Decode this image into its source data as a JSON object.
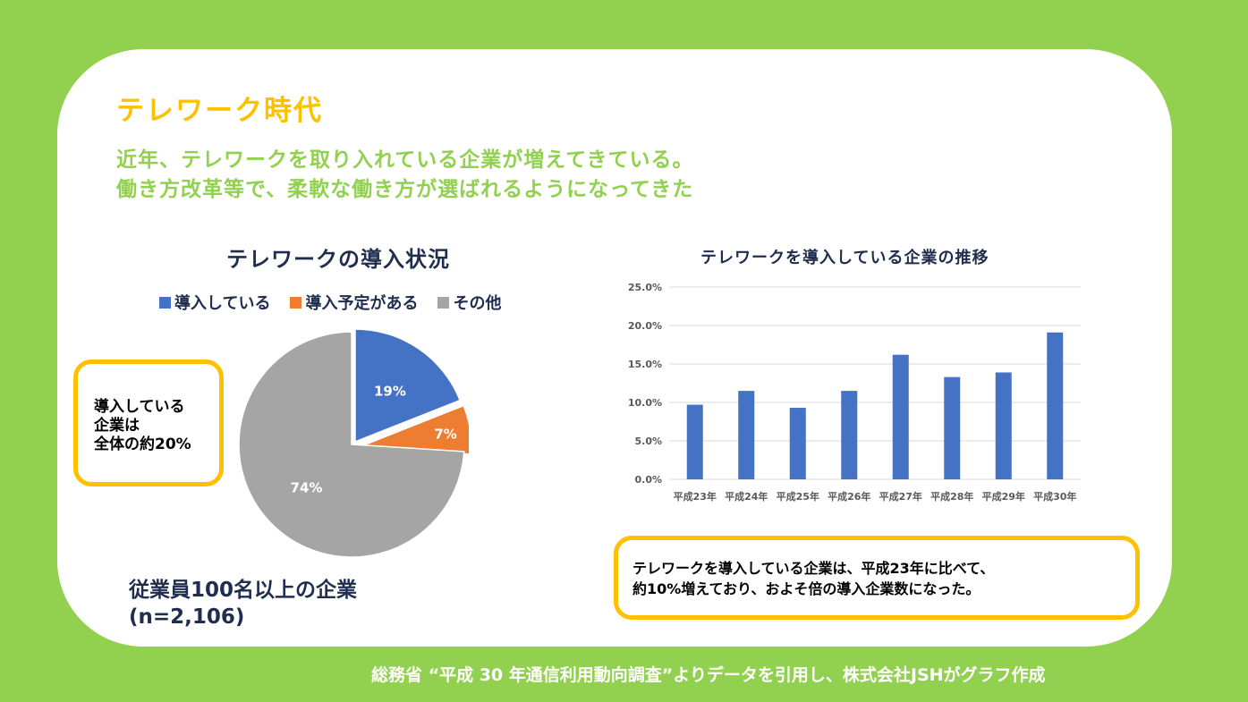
{
  "slide": {
    "title": "テレワーク時代",
    "subtitle_line1": "近年、テレワークを取り入れている企業が増えてきている。",
    "subtitle_line2": "働き方改革等で、柔軟な働き方が選ばれるようになってきた",
    "source": "総務省 “平成 30 年通信利用動向調査”よりデータを引用し、株式会社JSHがグラフ作成"
  },
  "callout_left": {
    "line1": "導入している",
    "line2": "企業は",
    "line3": "全体の約20%"
  },
  "callout_right": {
    "line1": "テレワークを導入している企業は、平成23年に比べて、",
    "line2": "約10%増えており、およそ倍の導入企業数になった。"
  },
  "note": {
    "line1": "従業員100名以上の企業",
    "line2": "(n=2,106)"
  },
  "colors": {
    "background": "#92d050",
    "accent": "#ffc000",
    "blue": "#4472c4",
    "orange": "#ed7d31",
    "gray": "#a5a5a5",
    "navy": "#1f2d4e"
  },
  "chart_data": [
    {
      "type": "pie",
      "title": "テレワークの導入状況",
      "categories": [
        "導入している",
        "導入予定がある",
        "その他"
      ],
      "values": [
        19,
        7,
        74
      ],
      "labels": [
        "19%",
        "7%",
        "74%"
      ],
      "colors": [
        "#4472c4",
        "#ed7d31",
        "#a5a5a5"
      ],
      "legend": "top"
    },
    {
      "type": "bar",
      "title": "テレワークを導入している企業の推移",
      "categories": [
        "平成23年",
        "平成24年",
        "平成25年",
        "平成26年",
        "平成27年",
        "平成28年",
        "平成29年",
        "平成30年"
      ],
      "values": [
        9.7,
        11.5,
        9.3,
        11.5,
        16.2,
        13.3,
        13.9,
        19.1
      ],
      "ylim": [
        0,
        25
      ],
      "yticks": [
        "0.0%",
        "5.0%",
        "10.0%",
        "15.0%",
        "20.0%",
        "25.0%"
      ],
      "grid": true,
      "color": "#4472c4"
    }
  ]
}
